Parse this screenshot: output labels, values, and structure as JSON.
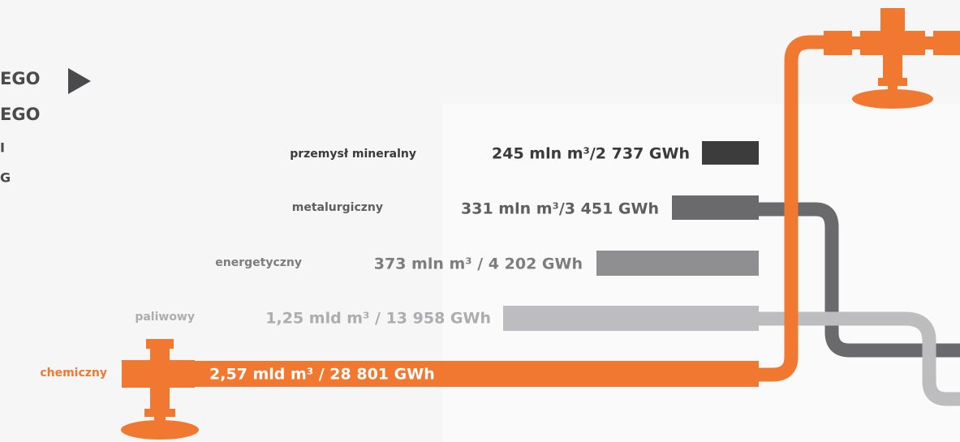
{
  "menu": [
    "EGO",
    "EGO",
    "I",
    "G"
  ],
  "sectors": [
    {
      "name": "przemysł mineralny",
      "amount": "245 mln m³/2 737 GWh"
    },
    {
      "name": "metalurgiczny",
      "amount": "331 mln m³/3 451 GWh"
    },
    {
      "name": "energetyczny",
      "amount": "373 mln m³ / 4 202 GWh"
    },
    {
      "name": "paliwowy",
      "amount": "1,25 mld m³ / 13 958 GWh"
    },
    {
      "name": "chemiczny",
      "amount": "2,57 mld m³ / 28 801 GWh"
    }
  ]
}
